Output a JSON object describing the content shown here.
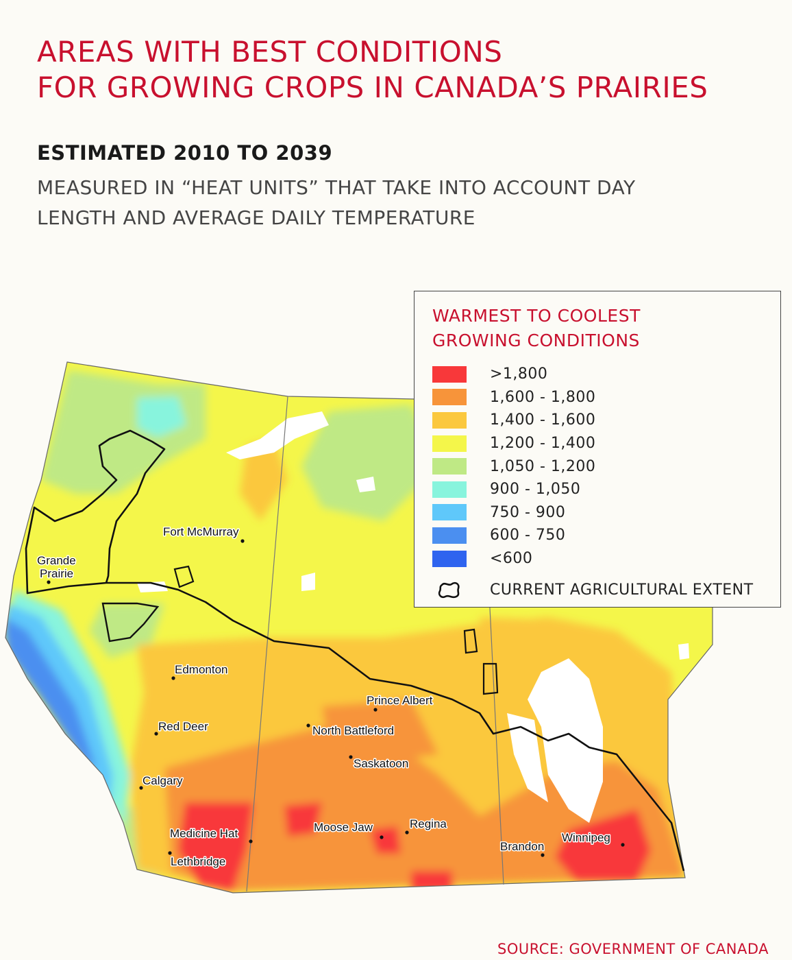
{
  "title": {
    "line1": "AREAS WITH BEST CONDITIONS",
    "line2": "FOR GROWING CROPS IN CANADA’S PRAIRIES"
  },
  "subtitle": "ESTIMATED 2010 TO 2039",
  "description": "MEASURED IN “HEAT UNITS” THAT TAKE INTO ACCOUNT DAY LENGTH AND AVERAGE DAILY TEMPERATURE",
  "legend": {
    "title_line1": "WARMEST TO COOLEST",
    "title_line2": "GROWING CONDITIONS",
    "items": [
      {
        "label": ">1,800",
        "color": "#f8383a"
      },
      {
        "label": "1,600 - 1,800",
        "color": "#f7943a"
      },
      {
        "label": "1,400 - 1,600",
        "color": "#fbc83e"
      },
      {
        "label": "1,200 - 1,400",
        "color": "#f4f64a"
      },
      {
        "label": "1,050 - 1,200",
        "color": "#bfe985"
      },
      {
        "label": "900 - 1,050",
        "color": "#88f4dd"
      },
      {
        "label": "750 - 900",
        "color": "#5fc8fa"
      },
      {
        "label": "600 - 750",
        "color": "#4b8ff0"
      },
      {
        "label": "<600",
        "color": "#2f64ef"
      }
    ],
    "extent_label": "CURRENT AGRICULTURAL EXTENT"
  },
  "cities": [
    {
      "name": "Fort McMurray"
    },
    {
      "name": "Grande"
    },
    {
      "name": "Prairie"
    },
    {
      "name": "Edmonton"
    },
    {
      "name": "Red Deer"
    },
    {
      "name": "Calgary"
    },
    {
      "name": "Medicine Hat"
    },
    {
      "name": "Lethbridge"
    },
    {
      "name": "Prince Albert"
    },
    {
      "name": "North Battleford"
    },
    {
      "name": "Saskatoon"
    },
    {
      "name": "Moose Jaw"
    },
    {
      "name": "Regina"
    },
    {
      "name": "Brandon"
    },
    {
      "name": "Winnipeg"
    }
  ],
  "source": "SOURCE: GOVERNMENT OF CANADA"
}
